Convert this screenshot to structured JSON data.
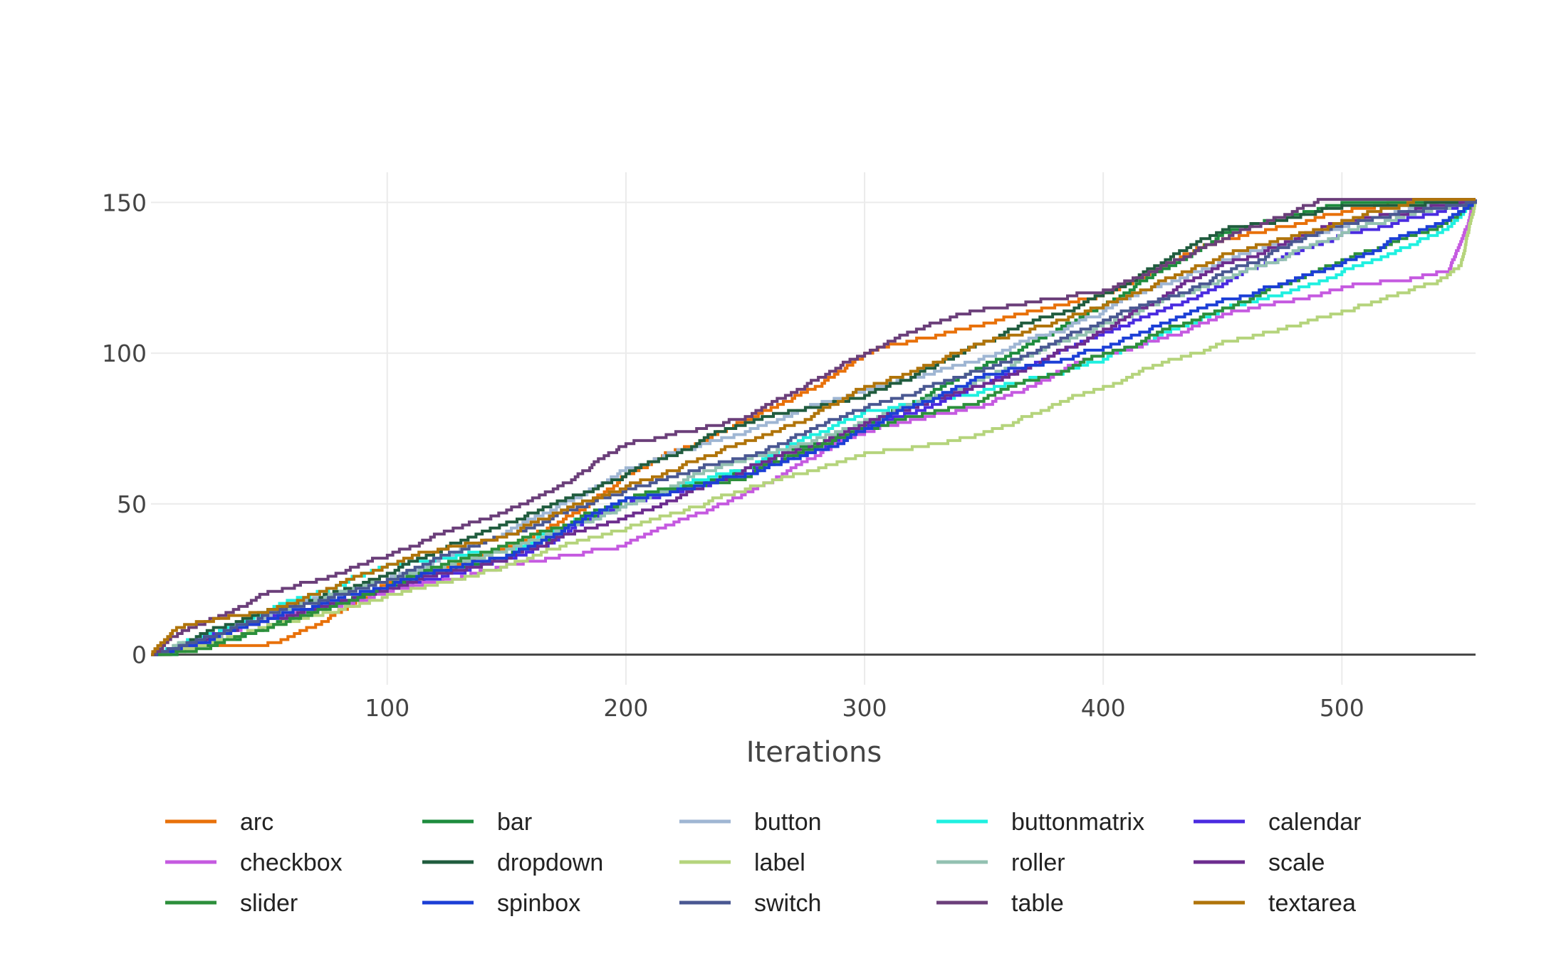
{
  "chart_data": {
    "type": "line",
    "title": "",
    "xlabel": "Iterations",
    "ylabel": "",
    "xlim": [
      1,
      556
    ],
    "ylim": [
      -10,
      160
    ],
    "x_ticks": [
      100,
      200,
      300,
      400,
      500
    ],
    "y_ticks": [
      0,
      50,
      100,
      150
    ],
    "grid": true,
    "legend_position": "bottom",
    "line_shape": "step",
    "series": [
      {
        "name": "arc",
        "color": "#e8710a",
        "points": [
          [
            1,
            0
          ],
          [
            20,
            3
          ],
          [
            50,
            4
          ],
          [
            70,
            10
          ],
          [
            100,
            24
          ],
          [
            150,
            36
          ],
          [
            175,
            46
          ],
          [
            200,
            60
          ],
          [
            250,
            78
          ],
          [
            300,
            100
          ],
          [
            350,
            110
          ],
          [
            400,
            120
          ],
          [
            450,
            138
          ],
          [
            500,
            147
          ],
          [
            530,
            151
          ],
          [
            556,
            151
          ]
        ]
      },
      {
        "name": "bar",
        "color": "#1e8c3e",
        "points": [
          [
            1,
            0
          ],
          [
            20,
            3
          ],
          [
            50,
            10
          ],
          [
            100,
            23
          ],
          [
            150,
            33
          ],
          [
            200,
            50
          ],
          [
            250,
            62
          ],
          [
            300,
            76
          ],
          [
            350,
            96
          ],
          [
            400,
            116
          ],
          [
            450,
            140
          ],
          [
            490,
            148
          ],
          [
            500,
            150
          ],
          [
            556,
            151
          ]
        ]
      },
      {
        "name": "button",
        "color": "#9fb6d3",
        "points": [
          [
            1,
            0
          ],
          [
            20,
            5
          ],
          [
            50,
            13
          ],
          [
            100,
            25
          ],
          [
            150,
            41
          ],
          [
            200,
            62
          ],
          [
            250,
            74
          ],
          [
            300,
            88
          ],
          [
            350,
            99
          ],
          [
            400,
            114
          ],
          [
            450,
            131
          ],
          [
            500,
            142
          ],
          [
            540,
            150
          ],
          [
            556,
            151
          ]
        ]
      },
      {
        "name": "buttonmatrix",
        "color": "#1ff0e0",
        "points": [
          [
            1,
            0
          ],
          [
            20,
            6
          ],
          [
            50,
            15
          ],
          [
            100,
            30
          ],
          [
            150,
            35
          ],
          [
            200,
            52
          ],
          [
            250,
            62
          ],
          [
            300,
            81
          ],
          [
            350,
            88
          ],
          [
            400,
            98
          ],
          [
            450,
            115
          ],
          [
            500,
            127
          ],
          [
            540,
            140
          ],
          [
            556,
            151
          ]
        ]
      },
      {
        "name": "calendar",
        "color": "#4a2be0",
        "points": [
          [
            1,
            0
          ],
          [
            20,
            5
          ],
          [
            50,
            12
          ],
          [
            100,
            22
          ],
          [
            150,
            32
          ],
          [
            200,
            50
          ],
          [
            250,
            60
          ],
          [
            300,
            75
          ],
          [
            350,
            90
          ],
          [
            400,
            107
          ],
          [
            450,
            123
          ],
          [
            500,
            140
          ],
          [
            540,
            147
          ],
          [
            556,
            151
          ]
        ]
      },
      {
        "name": "checkbox",
        "color": "#c55ae0",
        "points": [
          [
            1,
            0
          ],
          [
            20,
            3
          ],
          [
            50,
            12
          ],
          [
            100,
            21
          ],
          [
            150,
            30
          ],
          [
            200,
            37
          ],
          [
            250,
            54
          ],
          [
            300,
            74
          ],
          [
            350,
            83
          ],
          [
            400,
            100
          ],
          [
            450,
            113
          ],
          [
            500,
            122
          ],
          [
            545,
            128
          ],
          [
            556,
            151
          ]
        ]
      },
      {
        "name": "dropdown",
        "color": "#205c3e",
        "points": [
          [
            1,
            0
          ],
          [
            20,
            6
          ],
          [
            50,
            15
          ],
          [
            100,
            27
          ],
          [
            150,
            44
          ],
          [
            200,
            60
          ],
          [
            250,
            77
          ],
          [
            300,
            86
          ],
          [
            350,
            104
          ],
          [
            400,
            120
          ],
          [
            450,
            141
          ],
          [
            500,
            149
          ],
          [
            556,
            151
          ]
        ]
      },
      {
        "name": "label",
        "color": "#b5d47c",
        "points": [
          [
            1,
            0
          ],
          [
            20,
            3
          ],
          [
            50,
            10
          ],
          [
            100,
            20
          ],
          [
            150,
            30
          ],
          [
            200,
            42
          ],
          [
            250,
            55
          ],
          [
            300,
            67
          ],
          [
            350,
            74
          ],
          [
            400,
            89
          ],
          [
            450,
            104
          ],
          [
            500,
            114
          ],
          [
            540,
            124
          ],
          [
            550,
            130
          ],
          [
            556,
            151
          ]
        ]
      },
      {
        "name": "roller",
        "color": "#93c1b1",
        "points": [
          [
            1,
            0
          ],
          [
            20,
            5
          ],
          [
            50,
            14
          ],
          [
            100,
            25
          ],
          [
            150,
            35
          ],
          [
            200,
            50
          ],
          [
            250,
            65
          ],
          [
            300,
            78
          ],
          [
            350,
            92
          ],
          [
            400,
            110
          ],
          [
            450,
            125
          ],
          [
            500,
            140
          ],
          [
            556,
            151
          ]
        ]
      },
      {
        "name": "scale",
        "color": "#6d2d8f",
        "points": [
          [
            1,
            0
          ],
          [
            20,
            4
          ],
          [
            50,
            12
          ],
          [
            100,
            22
          ],
          [
            150,
            32
          ],
          [
            200,
            46
          ],
          [
            250,
            62
          ],
          [
            300,
            77
          ],
          [
            350,
            90
          ],
          [
            400,
            108
          ],
          [
            450,
            130
          ],
          [
            500,
            144
          ],
          [
            556,
            151
          ]
        ]
      },
      {
        "name": "slider",
        "color": "#2c8f3b",
        "points": [
          [
            1,
            0
          ],
          [
            20,
            2
          ],
          [
            50,
            9
          ],
          [
            100,
            23
          ],
          [
            150,
            37
          ],
          [
            200,
            52
          ],
          [
            250,
            59
          ],
          [
            300,
            75
          ],
          [
            350,
            85
          ],
          [
            400,
            100
          ],
          [
            450,
            115
          ],
          [
            500,
            131
          ],
          [
            540,
            142
          ],
          [
            556,
            151
          ]
        ]
      },
      {
        "name": "spinbox",
        "color": "#1c3fd6",
        "points": [
          [
            1,
            0
          ],
          [
            20,
            4
          ],
          [
            50,
            12
          ],
          [
            100,
            23
          ],
          [
            150,
            33
          ],
          [
            200,
            52
          ],
          [
            250,
            60
          ],
          [
            300,
            75
          ],
          [
            350,
            93
          ],
          [
            400,
            102
          ],
          [
            450,
            118
          ],
          [
            500,
            130
          ],
          [
            545,
            145
          ],
          [
            556,
            151
          ]
        ]
      },
      {
        "name": "switch",
        "color": "#4a5892",
        "points": [
          [
            1,
            0
          ],
          [
            20,
            5
          ],
          [
            50,
            14
          ],
          [
            100,
            25
          ],
          [
            150,
            40
          ],
          [
            200,
            55
          ],
          [
            250,
            66
          ],
          [
            300,
            82
          ],
          [
            350,
            95
          ],
          [
            400,
            111
          ],
          [
            450,
            127
          ],
          [
            500,
            143
          ],
          [
            556,
            151
          ]
        ]
      },
      {
        "name": "table",
        "color": "#6b3f7a",
        "points": [
          [
            1,
            0
          ],
          [
            20,
            10
          ],
          [
            50,
            21
          ],
          [
            100,
            33
          ],
          [
            150,
            48
          ],
          [
            200,
            70
          ],
          [
            250,
            79
          ],
          [
            300,
            100
          ],
          [
            350,
            115
          ],
          [
            400,
            121
          ],
          [
            450,
            138
          ],
          [
            490,
            151
          ],
          [
            556,
            151
          ]
        ]
      },
      {
        "name": "textarea",
        "color": "#b0740a",
        "points": [
          [
            1,
            0
          ],
          [
            10,
            8
          ],
          [
            20,
            11
          ],
          [
            50,
            15
          ],
          [
            100,
            30
          ],
          [
            150,
            40
          ],
          [
            200,
            56
          ],
          [
            250,
            71
          ],
          [
            300,
            89
          ],
          [
            350,
            104
          ],
          [
            400,
            116
          ],
          [
            450,
            133
          ],
          [
            500,
            144
          ],
          [
            530,
            151
          ],
          [
            556,
            151
          ]
        ]
      }
    ]
  }
}
